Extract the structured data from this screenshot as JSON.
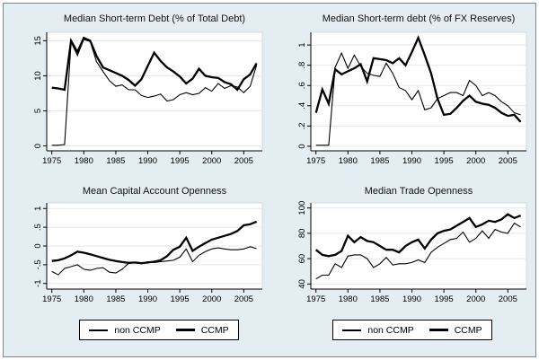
{
  "colors": {
    "background": "#e4edf1",
    "outer_border": "#7d888e",
    "plot_background": "#ffffff",
    "plot_border": "#c3d1d8",
    "grid": "#dfeaf0",
    "axis": "#000000",
    "line": "#000000",
    "text": "#000000",
    "legend_background": "#fdfefe",
    "legend_border": "#000000"
  },
  "legend": {
    "items": [
      {
        "label": "non CCMP",
        "style": "thin"
      },
      {
        "label": "CCMP",
        "style": "thick"
      }
    ]
  },
  "chart_data": [
    {
      "type": "line",
      "title": "Median Short-term Debt (% of Total Debt)",
      "xlabel": "",
      "ylabel": "",
      "grid": true,
      "legend_position": "bottom",
      "xlim": [
        1974.2,
        2007.9
      ],
      "ylim": [
        -0.7,
        16.2
      ],
      "xticks": [
        1975,
        1980,
        1985,
        1990,
        1995,
        2000,
        2005
      ],
      "yticks": [
        {
          "v": 0,
          "label": "0"
        },
        {
          "v": 5,
          "label": "5"
        },
        {
          "v": 10,
          "label": "10"
        },
        {
          "v": 15,
          "label": "15"
        }
      ],
      "x": [
        1975,
        1976,
        1977,
        1978,
        1979,
        1980,
        1981,
        1982,
        1983,
        1984,
        1985,
        1986,
        1987,
        1988,
        1989,
        1990,
        1991,
        1992,
        1993,
        1994,
        1995,
        1996,
        1997,
        1998,
        1999,
        2000,
        2001,
        2002,
        2003,
        2004,
        2005,
        2006,
        2007
      ],
      "series": [
        {
          "name": "non CCMP",
          "style": "thin",
          "values": [
            0.1,
            0.1,
            0.2,
            14.8,
            12.9,
            15.2,
            14.9,
            12.0,
            10.6,
            9.3,
            8.5,
            8.7,
            8.0,
            8.0,
            7.2,
            6.9,
            7.1,
            7.4,
            6.4,
            6.6,
            7.3,
            7.6,
            7.3,
            7.5,
            8.3,
            7.8,
            8.9,
            8.2,
            8.6,
            8.4,
            7.6,
            8.5,
            11.5
          ]
        },
        {
          "name": "CCMP",
          "style": "thick",
          "values": [
            8.3,
            8.2,
            8.0,
            15.0,
            13.4,
            15.4,
            15.0,
            12.8,
            11.2,
            10.8,
            10.4,
            10.0,
            9.4,
            8.6,
            9.5,
            11.4,
            13.3,
            12.1,
            11.2,
            10.6,
            9.9,
            8.9,
            9.6,
            11.0,
            10.0,
            9.8,
            9.7,
            9.1,
            8.8,
            8.0,
            9.5,
            10.2,
            11.8
          ]
        }
      ]
    },
    {
      "type": "line",
      "title": "Median Short-term debt (% of FX Reserves)",
      "xlabel": "",
      "ylabel": "",
      "grid": true,
      "legend_position": "bottom",
      "xlim": [
        1974.2,
        2007.9
      ],
      "ylim": [
        -0.045,
        1.125
      ],
      "xticks": [
        1975,
        1980,
        1985,
        1990,
        1995,
        2000,
        2005
      ],
      "yticks": [
        {
          "v": 0,
          "label": "0"
        },
        {
          "v": 0.2,
          "label": ".2"
        },
        {
          "v": 0.4,
          "label": ".4"
        },
        {
          "v": 0.6,
          "label": ".6"
        },
        {
          "v": 0.8,
          "label": ".8"
        },
        {
          "v": 1,
          "label": "1"
        }
      ],
      "x": [
        1975,
        1976,
        1977,
        1978,
        1979,
        1980,
        1981,
        1982,
        1983,
        1984,
        1985,
        1986,
        1987,
        1988,
        1989,
        1990,
        1991,
        1992,
        1993,
        1994,
        1995,
        1996,
        1997,
        1998,
        1999,
        2000,
        2001,
        2002,
        2003,
        2004,
        2005,
        2006,
        2007
      ],
      "series": [
        {
          "name": "non CCMP",
          "style": "thin",
          "values": [
            0.01,
            0.01,
            0.01,
            0.78,
            0.92,
            0.77,
            0.9,
            0.79,
            0.72,
            0.7,
            0.69,
            0.82,
            0.72,
            0.58,
            0.55,
            0.46,
            0.55,
            0.36,
            0.38,
            0.47,
            0.5,
            0.53,
            0.53,
            0.5,
            0.65,
            0.6,
            0.5,
            0.53,
            0.5,
            0.44,
            0.4,
            0.33,
            0.31
          ]
        },
        {
          "name": "CCMP",
          "style": "thick",
          "values": [
            0.33,
            0.56,
            0.42,
            0.76,
            0.71,
            0.74,
            0.77,
            0.81,
            0.64,
            0.87,
            0.86,
            0.85,
            0.82,
            0.87,
            0.8,
            0.93,
            1.07,
            0.9,
            0.72,
            0.47,
            0.31,
            0.32,
            0.38,
            0.45,
            0.5,
            0.44,
            0.42,
            0.41,
            0.38,
            0.33,
            0.3,
            0.31,
            0.24
          ]
        }
      ]
    },
    {
      "type": "line",
      "title": "Mean Capital Account Openness",
      "xlabel": "",
      "ylabel": "",
      "grid": true,
      "legend_position": "bottom",
      "xlim": [
        1974.2,
        2007.9
      ],
      "ylim": [
        -1.15,
        1.15
      ],
      "xticks": [
        1975,
        1980,
        1985,
        1990,
        1995,
        2000,
        2005
      ],
      "yticks": [
        {
          "v": -1,
          "label": "-1"
        },
        {
          "v": -0.5,
          "label": "-.5"
        },
        {
          "v": 0,
          "label": "0"
        },
        {
          "v": 0.5,
          "label": ".5"
        },
        {
          "v": 1,
          "label": "1"
        }
      ],
      "x": [
        1975,
        1976,
        1977,
        1978,
        1979,
        1980,
        1981,
        1982,
        1983,
        1984,
        1985,
        1986,
        1987,
        1988,
        1989,
        1990,
        1991,
        1992,
        1993,
        1994,
        1995,
        1996,
        1997,
        1998,
        1999,
        2000,
        2001,
        2002,
        2003,
        2004,
        2005,
        2006,
        2007
      ],
      "series": [
        {
          "name": "non CCMP",
          "style": "thin",
          "values": [
            -0.68,
            -0.77,
            -0.6,
            -0.55,
            -0.5,
            -0.62,
            -0.65,
            -0.6,
            -0.58,
            -0.7,
            -0.72,
            -0.62,
            -0.46,
            -0.45,
            -0.47,
            -0.42,
            -0.44,
            -0.42,
            -0.4,
            -0.38,
            -0.3,
            -0.08,
            -0.42,
            -0.25,
            -0.15,
            -0.08,
            -0.05,
            -0.08,
            -0.1,
            -0.1,
            -0.08,
            -0.02,
            -0.07
          ]
        },
        {
          "name": "CCMP",
          "style": "thick",
          "values": [
            -0.4,
            -0.38,
            -0.33,
            -0.25,
            -0.15,
            -0.18,
            -0.22,
            -0.27,
            -0.32,
            -0.37,
            -0.4,
            -0.43,
            -0.45,
            -0.44,
            -0.46,
            -0.44,
            -0.42,
            -0.38,
            -0.27,
            -0.1,
            -0.02,
            0.22,
            -0.13,
            -0.02,
            0.08,
            0.17,
            0.22,
            0.27,
            0.32,
            0.4,
            0.55,
            0.58,
            0.65
          ]
        }
      ]
    },
    {
      "type": "line",
      "title": "Median Trade Openness",
      "xlabel": "",
      "ylabel": "",
      "grid": true,
      "legend_position": "bottom",
      "xlim": [
        1974.2,
        2007.9
      ],
      "ylim": [
        36,
        104
      ],
      "xticks": [
        1975,
        1980,
        1985,
        1990,
        1995,
        2000,
        2005
      ],
      "yticks": [
        {
          "v": 40,
          "label": "40"
        },
        {
          "v": 60,
          "label": "60"
        },
        {
          "v": 80,
          "label": "80"
        },
        {
          "v": 100,
          "label": "100"
        }
      ],
      "x": [
        1975,
        1976,
        1977,
        1978,
        1979,
        1980,
        1981,
        1982,
        1983,
        1984,
        1985,
        1986,
        1987,
        1988,
        1989,
        1990,
        1991,
        1992,
        1993,
        1994,
        1995,
        1996,
        1997,
        1998,
        1999,
        2000,
        2001,
        2002,
        2003,
        2004,
        2005,
        2006,
        2007
      ],
      "series": [
        {
          "name": "non CCMP",
          "style": "thin",
          "values": [
            44,
            47,
            47,
            56,
            53,
            62,
            63,
            63,
            60,
            53,
            56,
            61,
            55,
            56,
            56,
            57,
            59,
            57,
            65,
            69,
            72,
            75,
            76,
            81,
            73,
            76,
            82,
            76,
            83,
            81,
            80,
            88,
            85
          ]
        },
        {
          "name": "CCMP",
          "style": "thick",
          "values": [
            67,
            63,
            62,
            63,
            66,
            78,
            73,
            77,
            74,
            73,
            70,
            67,
            67,
            65,
            70,
            73,
            75,
            68,
            75,
            80,
            82,
            83,
            86,
            89,
            92,
            85,
            87,
            90,
            89,
            91,
            95,
            92,
            94
          ]
        }
      ]
    }
  ]
}
